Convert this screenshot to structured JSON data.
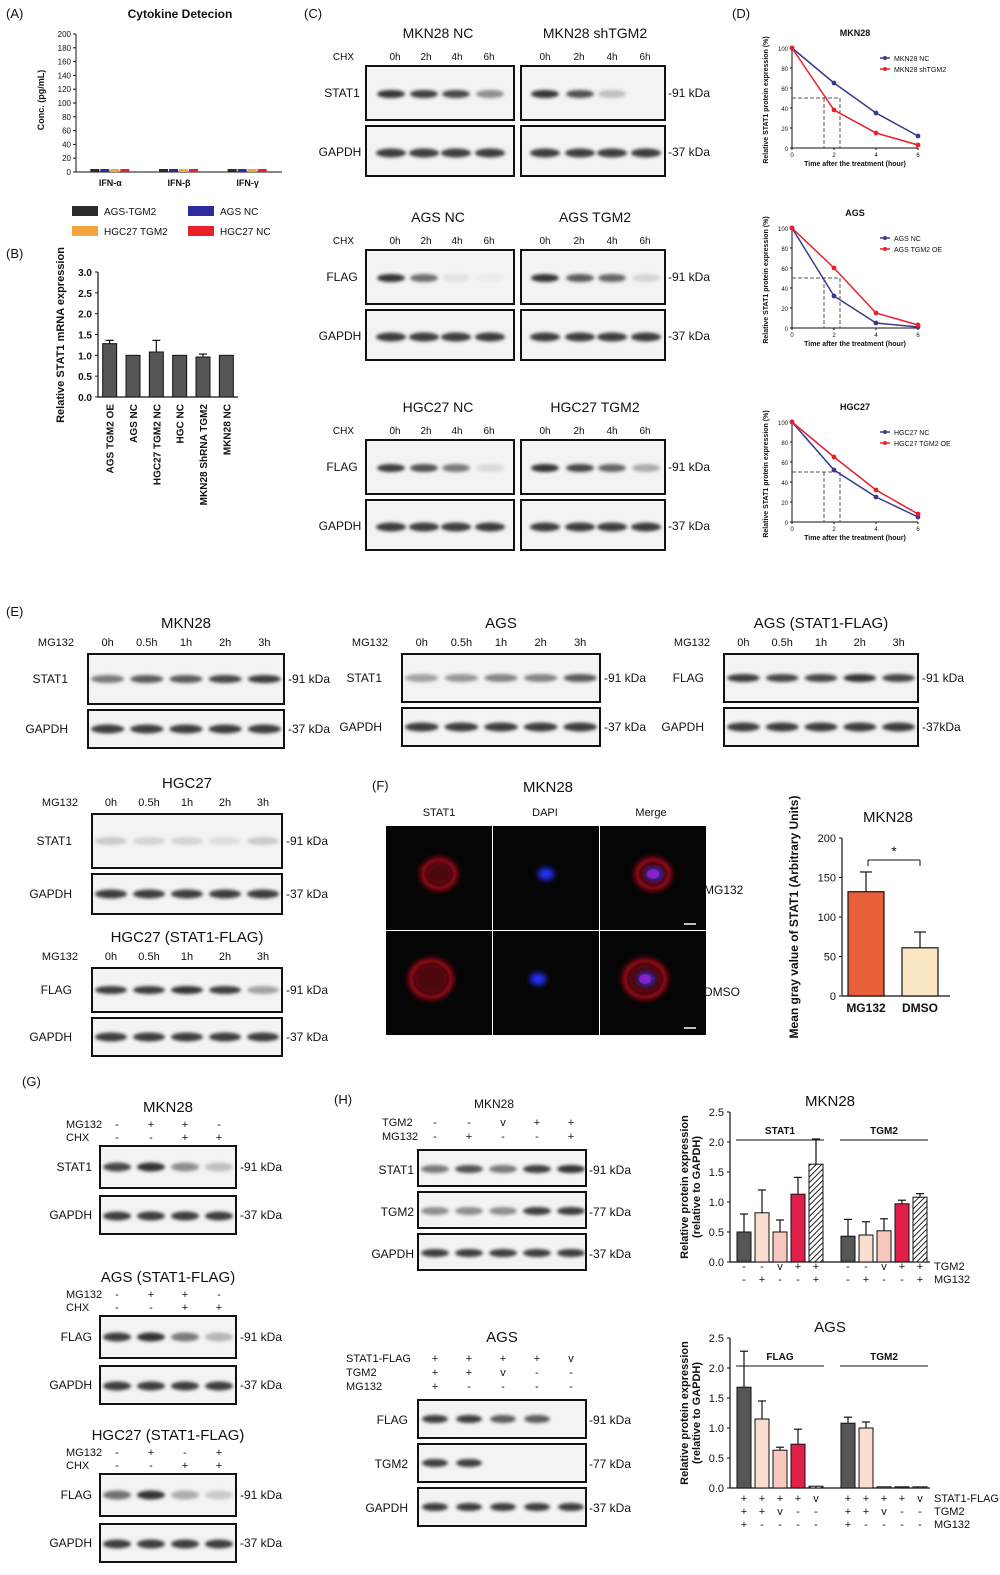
{
  "colors": {
    "black": "#2a2a2a",
    "blue": "#2c2ca0",
    "orange": "#f5a33c",
    "red": "#e8202a",
    "navy": "#3a3a8c",
    "mg132_bar": "#e8603a",
    "dmso_bar": "#fbe6c4",
    "gel": "#f3f3f3",
    "band": "#2b2b2b",
    "lightbar": "#f8ddd0",
    "pinkbar": "#f9c8c0",
    "crimson": "#e0204a"
  },
  "panelA": {
    "letter": "(A)",
    "chart_data": {
      "type": "bar",
      "title": "Cytokine Detecion",
      "ylabel": "Conc. (pg/mL)",
      "categories": [
        "IFN-α",
        "IFN-β",
        "IFN-γ"
      ],
      "ylim": [
        0,
        200
      ],
      "yticks": [
        "0",
        "20",
        "40",
        "60",
        "80",
        "100",
        "120",
        "140",
        "160",
        "180",
        "200"
      ],
      "series": [
        {
          "name": "AGS-TGM2",
          "values": [
            1,
            1,
            1
          ]
        },
        {
          "name": "AGS NC",
          "values": [
            1,
            1,
            1
          ]
        },
        {
          "name": "HGC27 TGM2",
          "values": [
            1,
            1,
            1
          ]
        },
        {
          "name": "HGC27 NC",
          "values": [
            1,
            1,
            1
          ]
        }
      ],
      "legend_placement": "bottom"
    }
  },
  "panelB": {
    "letter": "(B)",
    "chart_data": {
      "type": "bar",
      "ylabel": "Relative STAT1 mRNA expression",
      "categories": [
        "AGS TGM2 OE",
        "AGS NC",
        "HGC27 TGM2 NC",
        "HGC NC",
        "MKN28 ShRNA TGM2",
        "MKN28 NC"
      ],
      "values": [
        1.28,
        1.0,
        1.08,
        1.0,
        0.96,
        1.0
      ],
      "errors": [
        0.08,
        0,
        0.28,
        0,
        0.07,
        0
      ],
      "ylim": [
        0,
        3.0
      ],
      "yticks": [
        "0.0",
        "0.5",
        "1.0",
        "1.5",
        "2.0",
        "2.5",
        "3.0"
      ]
    }
  },
  "panelC": {
    "letter": "(C)",
    "blots": [
      {
        "left": "MKN28 NC",
        "right": "MKN28 shTGM2",
        "top": "STAT1",
        "bottom": "GAPDH",
        "kda1": "-91 kDa",
        "kda2": "-37 kDa"
      },
      {
        "left": "AGS NC",
        "right": "AGS TGM2",
        "top": "FLAG",
        "bottom": "GAPDH",
        "kda1": "-91 kDa",
        "kda2": "-37 kDa"
      },
      {
        "left": "HGC27 NC",
        "right": "HGC27 TGM2",
        "top": "FLAG",
        "bottom": "GAPDH",
        "kda1": "-91 kDa",
        "kda2": "-37 kDa"
      }
    ],
    "cond": "CHX",
    "times": [
      "0h",
      "2h",
      "4h",
      "6h"
    ]
  },
  "panelD": {
    "letter": "(D)",
    "charts": [
      {
        "type": "line",
        "title": "MKN28",
        "xlabel": "Time after the treatment (hour)",
        "ylabel": "Relative STAT1 protein expression (%)",
        "x": [
          0,
          2,
          4,
          6
        ],
        "xlim": [
          0,
          6
        ],
        "ylim": [
          0,
          100
        ],
        "series": [
          {
            "name": "MKN28 NC",
            "values": [
              100,
              65,
              35,
              12
            ]
          },
          {
            "name": "MKN28 shTGM2",
            "values": [
              100,
              38,
              15,
              3
            ]
          }
        ]
      },
      {
        "type": "line",
        "title": "AGS",
        "xlabel": "Time after the treatment (hour)",
        "ylabel": "Relative STAT1 protein expression (%)",
        "x": [
          0,
          2,
          4,
          6
        ],
        "xlim": [
          0,
          6
        ],
        "ylim": [
          0,
          100
        ],
        "series": [
          {
            "name": "AGS NC",
            "values": [
              100,
              32,
              5,
              1
            ]
          },
          {
            "name": "AGS TGM2 OE",
            "values": [
              100,
              60,
              15,
              3
            ]
          }
        ]
      },
      {
        "type": "line",
        "title": "HGC27",
        "xlabel": "Time after the treatment (hour)",
        "ylabel": "Relative STAT1 protein expression (%)",
        "x": [
          0,
          2,
          4,
          6
        ],
        "xlim": [
          0,
          6
        ],
        "ylim": [
          0,
          100
        ],
        "series": [
          {
            "name": "HGC27 NC",
            "values": [
              100,
              52,
              25,
              5
            ]
          },
          {
            "name": "HGC27 TGM2 OE",
            "values": [
              100,
              65,
              32,
              8
            ]
          }
        ]
      }
    ],
    "yticks": [
      "0",
      "20",
      "40",
      "60",
      "80",
      "100"
    ],
    "xticks": [
      "0",
      "2",
      "4",
      "6"
    ]
  },
  "panelE": {
    "letter": "(E)",
    "cond": "MG132",
    "times": [
      "0h",
      "0.5h",
      "1h",
      "2h",
      "3h"
    ],
    "blots": [
      {
        "title": "MKN28",
        "top": "STAT1",
        "bottom": "GAPDH",
        "kda1": "-91 kDa",
        "kda2": "-37 kDa"
      },
      {
        "title": "AGS",
        "top": "STAT1",
        "bottom": "GAPDH",
        "kda1": "-91 kDa",
        "kda2": "-37 kDa"
      },
      {
        "title": "AGS (STAT1-FLAG)",
        "top": "FLAG",
        "bottom": "GAPDH",
        "kda1": "-91 kDa",
        "kda2": "-37kDa"
      },
      {
        "title": "HGC27",
        "top": "STAT1",
        "bottom": "GAPDH",
        "kda1": "-91 kDa",
        "kda2": "-37 kDa"
      },
      {
        "title": "HGC27 (STAT1-FLAG)",
        "top": "FLAG",
        "bottom": "GAPDH",
        "kda1": "-91 kDa",
        "kda2": "-37 kDa"
      }
    ]
  },
  "panelF": {
    "letter": "(F)",
    "title": "MKN28",
    "cols": [
      "STAT1",
      "DAPI",
      "Merge"
    ],
    "rows": [
      "MG132",
      "DMSO"
    ],
    "chart_data": {
      "type": "bar",
      "title": "MKN28",
      "ylabel": "Mean gray value of STAT1 (Arbitrary Units)",
      "categories": [
        "MG132",
        "DMSO"
      ],
      "values": [
        132,
        61
      ],
      "errors": [
        25,
        20
      ],
      "ylim": [
        0,
        200
      ],
      "yticks": [
        "0",
        "50",
        "100",
        "150",
        "200"
      ],
      "annotation": "*"
    }
  },
  "panelG": {
    "letter": "(G)",
    "blots": [
      {
        "title": "MKN28",
        "top": "STAT1",
        "bottom": "GAPDH",
        "kda1": "-91 kDa",
        "kda2": "-37 kDa",
        "rows": [
          [
            "MG132",
            "-",
            "+",
            "+",
            "-"
          ],
          [
            "CHX",
            "-",
            "-",
            "+",
            "+"
          ]
        ]
      },
      {
        "title": "AGS (STAT1-FLAG)",
        "top": "FLAG",
        "bottom": "GAPDH",
        "kda1": "-91 kDa",
        "kda2": "-37 kDa",
        "rows": [
          [
            "MG132",
            "-",
            "+",
            "+",
            "-"
          ],
          [
            "CHX",
            "-",
            "-",
            "+",
            "+"
          ]
        ]
      },
      {
        "title": "HGC27 (STAT1-FLAG)",
        "top": "FLAG",
        "bottom": "GAPDH",
        "kda1": "-91 kDa",
        "kda2": "-37 kDa",
        "rows": [
          [
            "MG132",
            "-",
            "+",
            "-",
            "+"
          ],
          [
            "CHX",
            "-",
            "-",
            "+",
            "+"
          ]
        ]
      }
    ]
  },
  "panelH": {
    "letter": "(H)",
    "mkn": {
      "title": "MKN28",
      "rows": [
        [
          "TGM2",
          "-",
          "-",
          "v",
          "+",
          "+"
        ],
        [
          "MG132",
          "-",
          "+",
          "-",
          "-",
          "+"
        ]
      ],
      "bands": [
        "STAT1",
        "TGM2",
        "GAPDH"
      ],
      "kdas": [
        "-91 kDa",
        "-77 kDa",
        "-37 kDa"
      ]
    },
    "ags": {
      "title": "AGS",
      "rows": [
        [
          "STAT1-FLAG",
          "+",
          "+",
          "+",
          "+",
          "v"
        ],
        [
          "TGM2",
          "+",
          "+",
          "v",
          "-",
          "-"
        ],
        [
          "MG132",
          "+",
          "-",
          "-",
          "-",
          "-"
        ]
      ],
      "bands": [
        "FLAG",
        "TGM2",
        "GAPDH"
      ],
      "kdas": [
        "-91 kDa",
        "-77 kDa",
        "-37 kDa"
      ]
    },
    "chart_mkn": {
      "type": "bar",
      "title": "MKN28",
      "ylabel": "Relative protein expression (relative to GAPDH)",
      "groups": [
        "STAT1",
        "TGM2"
      ],
      "values": [
        [
          0.5,
          0.82,
          0.5,
          1.13,
          1.63
        ],
        [
          0.43,
          0.45,
          0.52,
          0.97,
          1.08
        ]
      ],
      "errors": [
        [
          0.3,
          0.38,
          0.2,
          0.28,
          0.42
        ],
        [
          0.28,
          0.22,
          0.2,
          0.06,
          0.06
        ]
      ],
      "ylim": [
        0,
        2.5
      ],
      "yticks": [
        "0.0",
        "0.5",
        "1.0",
        "1.5",
        "2.0",
        "2.5"
      ],
      "xrows": [
        [
          "TGM2",
          "-",
          "-",
          "v",
          "+",
          "+",
          "-",
          "-",
          "v",
          "+",
          "+"
        ],
        [
          "MG132",
          "-",
          "+",
          "-",
          "-",
          "+",
          "-",
          "+",
          "-",
          "-",
          "+"
        ]
      ]
    },
    "chart_ags": {
      "type": "bar",
      "title": "AGS",
      "ylabel": "Relative protein expression (relative to GAPDH)",
      "groups": [
        "FLAG",
        "TGM2"
      ],
      "values": [
        [
          1.68,
          1.15,
          0.63,
          0.73,
          0.03
        ],
        [
          1.08,
          1.0,
          0.02,
          0.02,
          0.02
        ]
      ],
      "errors": [
        [
          0.6,
          0.3,
          0.05,
          0.25,
          0
        ],
        [
          0.1,
          0.1,
          0,
          0,
          0
        ]
      ],
      "ylim": [
        0,
        2.5
      ],
      "yticks": [
        "0.0",
        "0.5",
        "1.0",
        "1.5",
        "2.0",
        "2.5"
      ],
      "xrows": [
        [
          "STAT1-FLAG",
          "+",
          "+",
          "+",
          "+",
          "v",
          "+",
          "+",
          "+",
          "+",
          "v"
        ],
        [
          "TGM2",
          "+",
          "+",
          "v",
          "-",
          "-",
          "+",
          "+",
          "v",
          "-",
          "-"
        ],
        [
          "MG132",
          "+",
          "-",
          "-",
          "-",
          "-",
          "+",
          "-",
          "-",
          "-",
          "-"
        ]
      ]
    }
  }
}
